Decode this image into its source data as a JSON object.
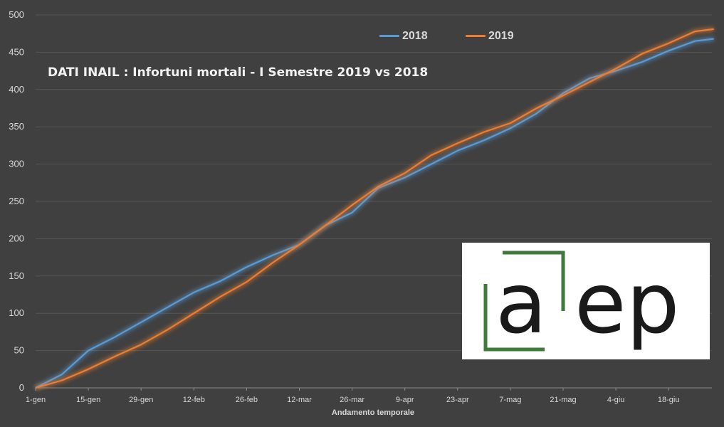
{
  "chart_data": {
    "type": "line",
    "title": "DATI INAIL : Infortuni mortali - I Semestre 2019 vs 2018",
    "xlabel": "Andamento temporale",
    "ylabel": "",
    "ylim": [
      0,
      500
    ],
    "yticks": [
      0,
      50,
      100,
      150,
      200,
      250,
      300,
      350,
      400,
      450,
      500
    ],
    "x_tick_labels": [
      "1-gen",
      "15-gen",
      "29-gen",
      "12-feb",
      "26-feb",
      "12-mar",
      "26-mar",
      "9-apr",
      "23-apr",
      "7-mag",
      "21-mag",
      "4-giu",
      "18-giu"
    ],
    "grid": true,
    "legend_position": "top",
    "x": [
      "1-gen",
      "8-gen",
      "15-gen",
      "22-gen",
      "29-gen",
      "5-feb",
      "12-feb",
      "19-feb",
      "26-feb",
      "5-mar",
      "12-mar",
      "19-mar",
      "26-mar",
      "2-apr",
      "9-apr",
      "16-apr",
      "23-apr",
      "30-apr",
      "7-mag",
      "14-mag",
      "21-mag",
      "28-mag",
      "4-giu",
      "11-giu",
      "18-giu",
      "25-giu",
      "30-giu"
    ],
    "series": [
      {
        "name": "2018",
        "color": "#5b9bd5",
        "values": [
          0,
          18,
          50,
          68,
          88,
          108,
          128,
          143,
          162,
          178,
          192,
          218,
          235,
          268,
          282,
          300,
          318,
          332,
          348,
          368,
          395,
          415,
          425,
          437,
          452,
          465,
          468
        ]
      },
      {
        "name": "2019",
        "color": "#ed7d31",
        "values": [
          0,
          10,
          25,
          42,
          58,
          78,
          100,
          122,
          142,
          168,
          192,
          218,
          245,
          270,
          288,
          312,
          328,
          343,
          355,
          375,
          392,
          410,
          428,
          448,
          462,
          478,
          481
        ]
      }
    ]
  },
  "logo": {
    "text": "aep",
    "frame_color": "#3f7a3c"
  }
}
